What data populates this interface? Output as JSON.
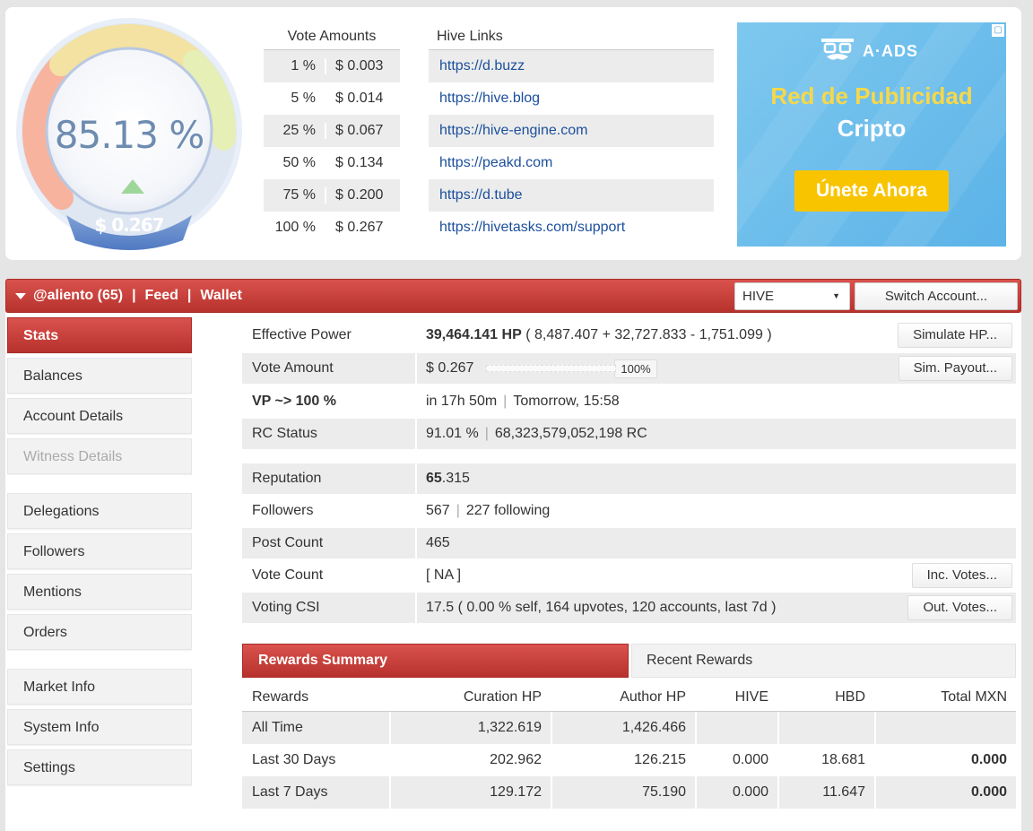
{
  "gauge": {
    "percent": "85.13 %",
    "value": "$ 0.267",
    "level": 0.8513
  },
  "vote_amounts": {
    "header": "Vote Amounts",
    "rows": [
      {
        "pct": "1 %",
        "amt": "$ 0.003"
      },
      {
        "pct": "5 %",
        "amt": "$ 0.014"
      },
      {
        "pct": "25 %",
        "amt": "$ 0.067"
      },
      {
        "pct": "50 %",
        "amt": "$ 0.134"
      },
      {
        "pct": "75 %",
        "amt": "$ 0.200"
      },
      {
        "pct": "100 %",
        "amt": "$ 0.267"
      }
    ]
  },
  "hive_links": {
    "header": "Hive Links",
    "links": [
      "https://d.buzz",
      "https://hive.blog",
      "https://hive-engine.com",
      "https://peakd.com",
      "https://d.tube",
      "https://hivetasks.com/support"
    ]
  },
  "ad": {
    "logo": "A·ADS",
    "line1": "Red de Publicidad",
    "line2": "Cripto",
    "button": "Únete Ahora",
    "close": "▢"
  },
  "header_bar": {
    "account": "@aliento (65)",
    "sep": "|",
    "feed": "Feed",
    "wallet": "Wallet",
    "currency": "HIVE",
    "switch": "Switch Account..."
  },
  "sidebar": {
    "items": [
      "Stats",
      "Balances",
      "Account Details",
      "Witness Details",
      "Delegations",
      "Followers",
      "Mentions",
      "Orders",
      "Market Info",
      "System Info",
      "Settings"
    ]
  },
  "stats": {
    "effective_power": {
      "label": "Effective Power",
      "bold": "39,464.141 HP",
      "detail": "( 8,487.407 + 32,727.833 - 1,751.099 )",
      "btn": "Simulate HP..."
    },
    "vote_amount": {
      "label": "Vote Amount",
      "value": "$ 0.267",
      "bar_label": "100%",
      "bar_level": 1.0,
      "btn": "Sim. Payout..."
    },
    "vp": {
      "label": "VP ~> 100 %",
      "v1": "in 17h 50m",
      "sep": "|",
      "v2": "Tomorrow, 15:58"
    },
    "rc": {
      "label": "RC Status",
      "v1": "91.01 %",
      "sep": "|",
      "v2": "68,323,579,052,198 RC"
    },
    "reputation": {
      "label": "Reputation",
      "bold": "65",
      "rest": ".315"
    },
    "followers": {
      "label": "Followers",
      "v1": "567",
      "sep": "|",
      "v2": "227 following"
    },
    "post_count": {
      "label": "Post Count",
      "value": "465"
    },
    "vote_count": {
      "label": "Vote Count",
      "value": "[ NA ]",
      "btn": "Inc. Votes..."
    },
    "voting_csi": {
      "label": "Voting CSI",
      "value": "17.5 ( 0.00 % self, 164 upvotes, 120 accounts, last 7d )",
      "btn": "Out. Votes..."
    }
  },
  "rewards": {
    "tab_active": "Rewards Summary",
    "tab_other": "Recent Rewards",
    "columns": [
      "Rewards",
      "Curation HP",
      "Author HP",
      "HIVE",
      "HBD",
      "Total MXN"
    ],
    "rows": [
      [
        "All Time",
        "1,322.619",
        "1,426.466",
        "",
        "",
        ""
      ],
      [
        "Last 30 Days",
        "202.962",
        "126.215",
        "0.000",
        "18.681",
        "0.000"
      ],
      [
        "Last 7 Days",
        "129.172",
        "75.190",
        "0.000",
        "11.647",
        "0.000"
      ]
    ]
  }
}
